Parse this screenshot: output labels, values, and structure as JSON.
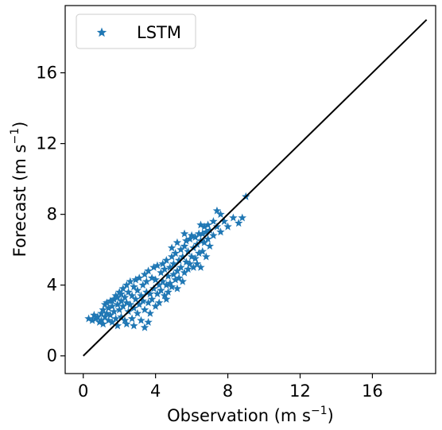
{
  "chart_data": {
    "type": "scatter",
    "xlabel": "Observation (m s",
    "xlabel_sup": "−1",
    "xlabel_end": ")",
    "ylabel": "Forecast (m s",
    "ylabel_sup": "−1",
    "ylabel_end": ")",
    "xlim": [
      -1,
      19.5
    ],
    "ylim": [
      -1,
      19.8
    ],
    "xticks": [
      0,
      4,
      8,
      12,
      16
    ],
    "yticks": [
      0,
      4,
      8,
      12,
      16
    ],
    "xtick_labels": [
      "0",
      "4",
      "8",
      "12",
      "16"
    ],
    "ytick_labels": [
      "0",
      "4",
      "8",
      "12",
      "16"
    ],
    "grid": false,
    "legend": {
      "label": "LSTM",
      "position": "upper-left"
    },
    "reference_line": {
      "x": [
        0,
        19
      ],
      "y": [
        0,
        19
      ],
      "color": "#000000"
    },
    "series": [
      {
        "name": "LSTM",
        "marker": "star",
        "color": "#1f77b4",
        "points": [
          [
            0.3,
            2.1
          ],
          [
            0.5,
            2.0
          ],
          [
            0.6,
            2.3
          ],
          [
            0.7,
            2.1
          ],
          [
            0.8,
            2.2
          ],
          [
            0.9,
            1.9
          ],
          [
            1.0,
            2.4
          ],
          [
            1.0,
            2.0
          ],
          [
            1.1,
            2.6
          ],
          [
            1.1,
            1.8
          ],
          [
            1.2,
            2.9
          ],
          [
            1.2,
            2.2
          ],
          [
            1.3,
            3.0
          ],
          [
            1.3,
            2.4
          ],
          [
            1.4,
            2.0
          ],
          [
            1.4,
            2.7
          ],
          [
            1.5,
            3.1
          ],
          [
            1.5,
            2.3
          ],
          [
            1.6,
            1.9
          ],
          [
            1.6,
            2.8
          ],
          [
            1.7,
            3.2
          ],
          [
            1.7,
            2.5
          ],
          [
            1.8,
            2.1
          ],
          [
            1.8,
            3.4
          ],
          [
            1.9,
            2.9
          ],
          [
            1.9,
            1.7
          ],
          [
            2.0,
            3.6
          ],
          [
            2.0,
            2.6
          ],
          [
            2.1,
            3.1
          ],
          [
            2.1,
            2.2
          ],
          [
            2.2,
            3.8
          ],
          [
            2.2,
            2.8
          ],
          [
            2.3,
            3.3
          ],
          [
            2.3,
            2.0
          ],
          [
            2.4,
            4.0
          ],
          [
            2.4,
            3.0
          ],
          [
            2.5,
            2.5
          ],
          [
            2.5,
            3.6
          ],
          [
            2.6,
            4.2
          ],
          [
            2.6,
            2.9
          ],
          [
            2.7,
            3.4
          ],
          [
            2.7,
            2.1
          ],
          [
            2.8,
            3.9
          ],
          [
            2.8,
            2.7
          ],
          [
            2.9,
            4.3
          ],
          [
            2.9,
            3.2
          ],
          [
            3.0,
            2.4
          ],
          [
            3.0,
            3.7
          ],
          [
            3.1,
            4.4
          ],
          [
            3.1,
            2.9
          ],
          [
            3.2,
            3.4
          ],
          [
            3.2,
            2.0
          ],
          [
            3.3,
            4.0
          ],
          [
            3.3,
            3.1
          ],
          [
            3.4,
            4.6
          ],
          [
            3.4,
            2.6
          ],
          [
            3.5,
            3.6
          ],
          [
            3.5,
            4.2
          ],
          [
            3.6,
            3.0
          ],
          [
            3.6,
            4.8
          ],
          [
            3.7,
            3.5
          ],
          [
            3.7,
            2.4
          ],
          [
            3.8,
            4.4
          ],
          [
            3.8,
            3.2
          ],
          [
            3.9,
            5.0
          ],
          [
            3.9,
            3.8
          ],
          [
            4.0,
            2.8
          ],
          [
            4.0,
            4.3
          ],
          [
            4.1,
            3.5
          ],
          [
            4.1,
            5.1
          ],
          [
            4.2,
            4.0
          ],
          [
            4.2,
            3.0
          ],
          [
            4.3,
            4.7
          ],
          [
            4.3,
            3.7
          ],
          [
            4.4,
            5.2
          ],
          [
            4.4,
            4.2
          ],
          [
            4.5,
            3.4
          ],
          [
            4.5,
            4.9
          ],
          [
            4.6,
            4.0
          ],
          [
            4.6,
            5.4
          ],
          [
            4.7,
            3.6
          ],
          [
            4.7,
            4.5
          ],
          [
            4.8,
            5.0
          ],
          [
            4.8,
            4.1
          ],
          [
            4.9,
            5.6
          ],
          [
            4.9,
            3.9
          ],
          [
            5.0,
            4.6
          ],
          [
            5.0,
            5.2
          ],
          [
            5.1,
            4.3
          ],
          [
            5.1,
            5.8
          ],
          [
            5.2,
            4.8
          ],
          [
            5.2,
            3.8
          ],
          [
            5.3,
            5.4
          ],
          [
            5.3,
            4.4
          ],
          [
            5.4,
            6.0
          ],
          [
            5.4,
            5.0
          ],
          [
            5.5,
            4.2
          ],
          [
            5.5,
            5.6
          ],
          [
            5.6,
            6.2
          ],
          [
            5.6,
            4.7
          ],
          [
            5.7,
            5.3
          ],
          [
            5.7,
            6.5
          ],
          [
            5.8,
            4.9
          ],
          [
            5.8,
            5.9
          ],
          [
            5.9,
            6.6
          ],
          [
            5.9,
            5.2
          ],
          [
            6.0,
            5.6
          ],
          [
            6.0,
            6.8
          ],
          [
            6.1,
            5.0
          ],
          [
            6.1,
            6.1
          ],
          [
            6.2,
            6.7
          ],
          [
            6.2,
            5.5
          ],
          [
            6.3,
            6.3
          ],
          [
            6.3,
            5.2
          ],
          [
            6.4,
            6.9
          ],
          [
            6.4,
            5.8
          ],
          [
            6.5,
            6.5
          ],
          [
            6.5,
            5.0
          ],
          [
            6.6,
            6.9
          ],
          [
            6.6,
            5.9
          ],
          [
            6.7,
            7.3
          ],
          [
            6.7,
            6.4
          ],
          [
            6.8,
            7.0
          ],
          [
            6.8,
            5.6
          ],
          [
            6.9,
            7.4
          ],
          [
            6.9,
            6.6
          ],
          [
            7.0,
            7.1
          ],
          [
            7.0,
            6.2
          ],
          [
            7.2,
            7.6
          ],
          [
            7.2,
            6.8
          ],
          [
            7.4,
            8.2
          ],
          [
            7.4,
            7.3
          ],
          [
            7.6,
            7.0
          ],
          [
            7.6,
            8.0
          ],
          [
            8.0,
            7.3
          ],
          [
            8.3,
            7.8
          ],
          [
            8.6,
            7.5
          ],
          [
            8.8,
            7.8
          ],
          [
            9.0,
            9.0
          ],
          [
            7.8,
            7.6
          ],
          [
            5.2,
            6.4
          ],
          [
            4.6,
            3.2
          ],
          [
            3.4,
            1.6
          ],
          [
            2.8,
            1.7
          ],
          [
            1.6,
            3.1
          ],
          [
            2.1,
            3.5
          ],
          [
            3.6,
            1.9
          ],
          [
            4.9,
            6.1
          ],
          [
            5.6,
            6.9
          ],
          [
            6.5,
            7.4
          ],
          [
            1.9,
            3.3
          ],
          [
            2.4,
            1.8
          ]
        ]
      }
    ]
  }
}
